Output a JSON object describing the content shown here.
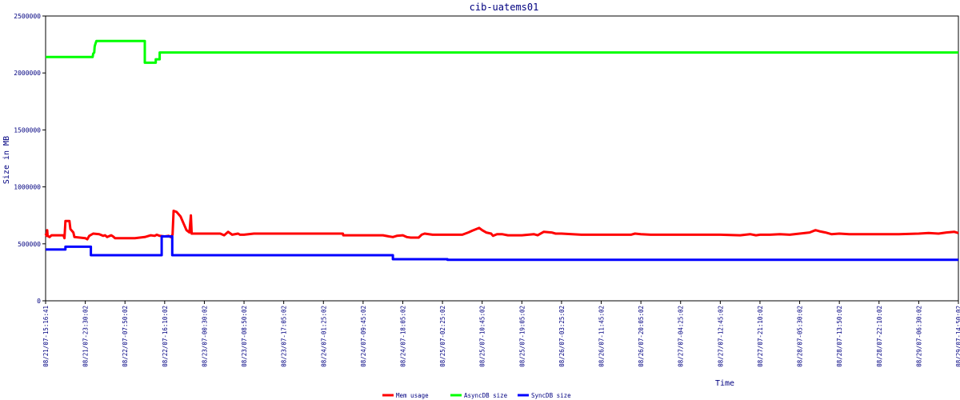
{
  "chart_data": {
    "type": "line",
    "title": "cib-uatems01",
    "xlabel": "Time",
    "ylabel": "Size in MB",
    "ylim": [
      0,
      2500000
    ],
    "yticks": [
      "0",
      "500000",
      "1000000",
      "1500000",
      "2000000",
      "2500000"
    ],
    "x_categories": [
      "08/21/07-15:16:41",
      "08/21/07-23:30:02",
      "08/22/07-07:50:02",
      "08/22/07-16:10:02",
      "08/23/07-00:30:02",
      "08/23/07-08:50:02",
      "08/23/07-17:05:02",
      "08/24/07-01:25:02",
      "08/24/07-09:45:02",
      "08/24/07-18:05:02",
      "08/25/07-02:25:02",
      "08/25/07-10:45:02",
      "08/25/07-19:05:02",
      "08/26/07-03:25:02",
      "08/26/07-11:45:02",
      "08/26/07-20:05:02",
      "08/27/07-04:25:02",
      "08/27/07-12:45:02",
      "08/27/07-21:10:02",
      "08/28/07-05:30:02",
      "08/28/07-13:50:02",
      "08/28/07-22:10:02",
      "08/29/07-06:30:02",
      "08/29/07-14:50:02"
    ],
    "series": [
      {
        "name": "Mem usage",
        "color": "#ff0000",
        "points": [
          [
            0.0,
            590000
          ],
          [
            0.05,
            570000
          ],
          [
            0.08,
            620000
          ],
          [
            0.1,
            570000
          ],
          [
            0.2,
            560000
          ],
          [
            0.3,
            575000
          ],
          [
            0.6,
            575000
          ],
          [
            0.9,
            575000
          ],
          [
            0.95,
            550000
          ],
          [
            1.0,
            700000
          ],
          [
            1.2,
            700000
          ],
          [
            1.25,
            630000
          ],
          [
            1.4,
            600000
          ],
          [
            1.45,
            560000
          ],
          [
            2.0,
            550000
          ],
          [
            2.1,
            540000
          ],
          [
            2.2,
            570000
          ],
          [
            2.4,
            590000
          ],
          [
            2.7,
            585000
          ],
          [
            2.9,
            570000
          ],
          [
            3.0,
            575000
          ],
          [
            3.1,
            560000
          ],
          [
            3.3,
            575000
          ],
          [
            3.4,
            565000
          ],
          [
            3.5,
            550000
          ],
          [
            4.0,
            550000
          ],
          [
            4.5,
            550000
          ],
          [
            5.0,
            560000
          ],
          [
            5.3,
            575000
          ],
          [
            5.5,
            570000
          ],
          [
            5.6,
            580000
          ],
          [
            5.75,
            570000
          ],
          [
            6.0,
            565000
          ],
          [
            6.2,
            570000
          ],
          [
            6.3,
            560000
          ],
          [
            6.4,
            580000
          ],
          [
            6.45,
            790000
          ],
          [
            6.6,
            780000
          ],
          [
            6.8,
            740000
          ],
          [
            6.95,
            680000
          ],
          [
            7.1,
            620000
          ],
          [
            7.25,
            600000
          ],
          [
            7.32,
            750000
          ],
          [
            7.36,
            590000
          ],
          [
            8.0,
            590000
          ],
          [
            8.8,
            590000
          ],
          [
            9.0,
            575000
          ],
          [
            9.2,
            605000
          ],
          [
            9.4,
            580000
          ],
          [
            9.7,
            590000
          ],
          [
            9.8,
            580000
          ],
          [
            10.0,
            580000
          ],
          [
            10.5,
            590000
          ],
          [
            11.0,
            590000
          ],
          [
            13.0,
            590000
          ],
          [
            14.0,
            590000
          ],
          [
            14.98,
            590000
          ],
          [
            15.0,
            575000
          ],
          [
            16.0,
            575000
          ],
          [
            17.0,
            575000
          ],
          [
            17.3,
            565000
          ],
          [
            17.5,
            560000
          ],
          [
            17.7,
            570000
          ],
          [
            18.0,
            575000
          ],
          [
            18.2,
            560000
          ],
          [
            18.4,
            555000
          ],
          [
            18.8,
            555000
          ],
          [
            18.95,
            580000
          ],
          [
            19.1,
            590000
          ],
          [
            19.5,
            580000
          ],
          [
            20.0,
            580000
          ],
          [
            20.5,
            580000
          ],
          [
            21.0,
            580000
          ],
          [
            21.3,
            600000
          ],
          [
            21.5,
            615000
          ],
          [
            21.85,
            640000
          ],
          [
            22.0,
            620000
          ],
          [
            22.2,
            600000
          ],
          [
            22.45,
            590000
          ],
          [
            22.55,
            570000
          ],
          [
            22.75,
            585000
          ],
          [
            23.0,
            585000
          ],
          [
            23.3,
            575000
          ],
          [
            24.0,
            575000
          ],
          [
            24.6,
            585000
          ],
          [
            24.8,
            575000
          ],
          [
            25.1,
            605000
          ],
          [
            25.5,
            600000
          ],
          [
            25.7,
            590000
          ],
          [
            26.0,
            590000
          ],
          [
            27.0,
            580000
          ],
          [
            28.0,
            580000
          ],
          [
            29.0,
            580000
          ],
          [
            29.5,
            580000
          ],
          [
            29.7,
            590000
          ],
          [
            30.0,
            585000
          ],
          [
            30.5,
            580000
          ],
          [
            31.0,
            580000
          ],
          [
            32.0,
            580000
          ],
          [
            33.0,
            580000
          ],
          [
            34.0,
            580000
          ],
          [
            35.0,
            575000
          ],
          [
            35.5,
            585000
          ],
          [
            35.8,
            575000
          ],
          [
            36.0,
            580000
          ],
          [
            36.5,
            580000
          ],
          [
            37.0,
            585000
          ],
          [
            37.5,
            580000
          ],
          [
            38.0,
            590000
          ],
          [
            38.5,
            600000
          ],
          [
            38.8,
            620000
          ],
          [
            39.0,
            610000
          ],
          [
            39.3,
            600000
          ],
          [
            39.6,
            585000
          ],
          [
            40.0,
            590000
          ],
          [
            40.5,
            585000
          ],
          [
            41.0,
            585000
          ],
          [
            42.0,
            585000
          ],
          [
            43.0,
            585000
          ],
          [
            44.0,
            590000
          ],
          [
            44.5,
            595000
          ],
          [
            45.0,
            590000
          ],
          [
            45.4,
            600000
          ],
          [
            45.8,
            605000
          ],
          [
            46.0,
            595000
          ]
        ]
      },
      {
        "name": "AsyncDB size",
        "color": "#00ff00",
        "points": [
          [
            0.0,
            2140000
          ],
          [
            2.37,
            2140000
          ],
          [
            2.4,
            2170000
          ],
          [
            2.45,
            2180000
          ],
          [
            2.47,
            2230000
          ],
          [
            2.5,
            2250000
          ],
          [
            2.56,
            2280000
          ],
          [
            5.0,
            2280000
          ],
          [
            5.0,
            2090000
          ],
          [
            5.55,
            2090000
          ],
          [
            5.55,
            2120000
          ],
          [
            5.75,
            2120000
          ],
          [
            5.75,
            2180000
          ],
          [
            23.0,
            2180000
          ],
          [
            46.0,
            2180000
          ]
        ]
      },
      {
        "name": "SyncDB size",
        "color": "#0000ff",
        "points": [
          [
            0.0,
            450000
          ],
          [
            1.0,
            450000
          ],
          [
            1.0,
            475000
          ],
          [
            2.28,
            475000
          ],
          [
            2.28,
            400000
          ],
          [
            5.85,
            400000
          ],
          [
            5.85,
            565000
          ],
          [
            6.38,
            565000
          ],
          [
            6.38,
            400000
          ],
          [
            17.5,
            400000
          ],
          [
            17.5,
            365000
          ],
          [
            20.25,
            365000
          ],
          [
            20.25,
            360000
          ],
          [
            22.45,
            360000
          ],
          [
            22.45,
            360000
          ],
          [
            46.0,
            360000
          ]
        ]
      }
    ],
    "x_max": 46.0,
    "legend_position": "bottom",
    "grid": false
  }
}
